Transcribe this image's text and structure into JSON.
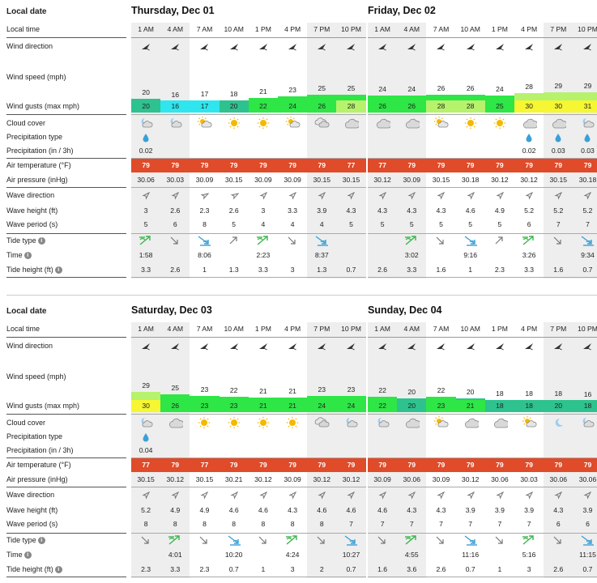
{
  "labels": {
    "local_date": "Local date",
    "local_time": "Local time",
    "wind_direction": "Wind direction",
    "wind_speed": "Wind speed (mph)",
    "wind_gusts": "Wind gusts (max mph)",
    "cloud_cover": "Cloud cover",
    "precip_type": "Precipitation type",
    "precipitation": "Precipitation (in / 3h)",
    "air_temp": "Air temperature (°F)",
    "air_pressure": "Air pressure (inHg)",
    "wave_direction": "Wave direction",
    "wave_height": "Wave height (ft)",
    "wave_period": "Wave period (s)",
    "tide_type": "Tide type",
    "time": "Time",
    "tide_height": "Tide height (ft)",
    "info_glyph": "i"
  },
  "colors": {
    "temp_bg": "#e04b2a",
    "shade": "#eeeeee",
    "wind_cyan": "#2fe6ee",
    "wind_teal": "#2ec28e",
    "wind_green": "#2ee646",
    "wind_lime": "#b6f26c",
    "wind_yellow": "#f6f632",
    "tide_rising": "#3ab54a",
    "tide_falling": "#3aa0d8"
  },
  "hours": [
    "1 AM",
    "4 AM",
    "7 AM",
    "10 AM",
    "1 PM",
    "4 PM",
    "7 PM",
    "10 PM"
  ],
  "sections": [
    {
      "days": [
        {
          "title": "Thursday, Dec 01",
          "wind_dir": [
            225,
            225,
            225,
            225,
            225,
            225,
            225,
            225
          ],
          "wind_speed": [
            "20",
            "16",
            "17",
            "18",
            "21",
            "23",
            "25",
            "25"
          ],
          "wind_speed_n": [
            20,
            16,
            17,
            18,
            21,
            23,
            25,
            25
          ],
          "gusts": [
            "20",
            "16",
            "17",
            "20",
            "22",
            "24",
            "26",
            "28"
          ],
          "gusts_n": [
            20,
            16,
            17,
            20,
            22,
            24,
            26,
            28
          ],
          "clouds": [
            "partly-cloudy-night-icon",
            "partly-cloudy-night-icon",
            "partly-sunny-icon",
            "sun-icon",
            "sun-icon",
            "partly-sunny-icon",
            "partly-cloudy-icon",
            "cloud-icon"
          ],
          "precip_type": [
            "rain-drop-icon",
            "",
            "",
            "",
            "",
            "",
            "",
            ""
          ],
          "precip": [
            "0.02",
            "",
            "",
            "",
            "",
            "",
            "",
            ""
          ],
          "temp": [
            "79",
            "79",
            "79",
            "79",
            "79",
            "79",
            "79",
            "77"
          ],
          "pressure": [
            "30.06",
            "30.03",
            "30.09",
            "30.15",
            "30.09",
            "30.09",
            "30.15",
            "30.15"
          ],
          "wave_dir": [
            45,
            45,
            60,
            60,
            45,
            45,
            45,
            45
          ],
          "wave_height": [
            "3",
            "2.6",
            "2.3",
            "2.6",
            "3",
            "3.3",
            "3.9",
            "4.3"
          ],
          "wave_period": [
            "5",
            "6",
            "8",
            "5",
            "4",
            "4",
            "4",
            "5"
          ],
          "tide_type": [
            "high",
            "falling",
            "low",
            "rising",
            "high",
            "falling",
            "low",
            ""
          ],
          "tide_time": [
            "1:58",
            "",
            "8:06",
            "",
            "2:23",
            "",
            "8:37",
            ""
          ],
          "tide_height": [
            "3.3",
            "2.6",
            "1",
            "1.3",
            "3.3",
            "3",
            "1.3",
            "0.7"
          ]
        },
        {
          "title": "Friday, Dec 02",
          "wind_dir": [
            225,
            225,
            225,
            225,
            225,
            225,
            225,
            225
          ],
          "wind_speed": [
            "24",
            "24",
            "26",
            "26",
            "24",
            "28",
            "29",
            "29"
          ],
          "wind_speed_n": [
            24,
            24,
            26,
            26,
            24,
            28,
            29,
            29
          ],
          "gusts": [
            "26",
            "26",
            "28",
            "28",
            "25",
            "30",
            "30",
            "31"
          ],
          "gusts_n": [
            26,
            26,
            28,
            28,
            25,
            30,
            30,
            31
          ],
          "clouds": [
            "cloud-icon",
            "cloud-icon",
            "partly-sunny-icon",
            "sun-icon",
            "sun-icon",
            "cloud-icon",
            "cloud-icon",
            "partly-cloudy-night-icon"
          ],
          "precip_type": [
            "",
            "",
            "",
            "",
            "",
            "rain-drop-icon",
            "rain-drop-icon",
            "rain-drop-icon"
          ],
          "precip": [
            "",
            "",
            "",
            "",
            "",
            "0.02",
            "0.03",
            "0.03"
          ],
          "temp": [
            "77",
            "79",
            "79",
            "79",
            "79",
            "79",
            "79",
            "79"
          ],
          "pressure": [
            "30.12",
            "30.09",
            "30.15",
            "30.18",
            "30.12",
            "30.12",
            "30.15",
            "30.18"
          ],
          "wave_dir": [
            45,
            45,
            45,
            45,
            45,
            45,
            45,
            45
          ],
          "wave_height": [
            "4.3",
            "4.3",
            "4.3",
            "4.6",
            "4.9",
            "5.2",
            "5.2",
            "5.2"
          ],
          "wave_period": [
            "5",
            "5",
            "5",
            "5",
            "5",
            "6",
            "7",
            "7"
          ],
          "tide_type": [
            "",
            "high",
            "falling",
            "low",
            "rising",
            "high",
            "falling",
            "low"
          ],
          "tide_time": [
            "",
            "3:02",
            "",
            "9:16",
            "",
            "3:26",
            "",
            "9:34"
          ],
          "tide_height": [
            "2.6",
            "3.3",
            "1.6",
            "1",
            "2.3",
            "3.3",
            "1.6",
            "0.7"
          ]
        }
      ]
    },
    {
      "days": [
        {
          "title": "Saturday, Dec 03",
          "wind_dir": [
            225,
            225,
            225,
            225,
            225,
            225,
            225,
            225
          ],
          "wind_speed": [
            "29",
            "25",
            "23",
            "22",
            "21",
            "21",
            "23",
            "23"
          ],
          "wind_speed_n": [
            29,
            25,
            23,
            22,
            21,
            21,
            23,
            23
          ],
          "gusts": [
            "30",
            "26",
            "23",
            "23",
            "21",
            "21",
            "24",
            "24"
          ],
          "gusts_n": [
            30,
            26,
            23,
            23,
            21,
            21,
            24,
            24
          ],
          "clouds": [
            "partly-cloudy-night-icon",
            "cloud-icon",
            "sun-icon",
            "sun-icon",
            "sun-icon",
            "sun-icon",
            "partly-cloudy-icon",
            "partly-cloudy-night-icon"
          ],
          "precip_type": [
            "rain-drop-icon",
            "",
            "",
            "",
            "",
            "",
            "",
            ""
          ],
          "precip": [
            "0.04",
            "",
            "",
            "",
            "",
            "",
            "",
            ""
          ],
          "temp": [
            "77",
            "79",
            "77",
            "79",
            "79",
            "79",
            "79",
            "79"
          ],
          "pressure": [
            "30.15",
            "30.12",
            "30.15",
            "30.21",
            "30.12",
            "30.09",
            "30.12",
            "30.12"
          ],
          "wave_dir": [
            45,
            45,
            45,
            45,
            45,
            45,
            45,
            45
          ],
          "wave_height": [
            "5.2",
            "4.9",
            "4.9",
            "4.6",
            "4.6",
            "4.3",
            "4.6",
            "4.6"
          ],
          "wave_period": [
            "8",
            "8",
            "8",
            "8",
            "8",
            "8",
            "8",
            "7"
          ],
          "tide_type": [
            "falling",
            "high",
            "falling",
            "low",
            "falling",
            "high",
            "falling",
            "low"
          ],
          "tide_time": [
            "",
            "4:01",
            "",
            "10:20",
            "",
            "4:24",
            "",
            "10:27"
          ],
          "tide_height": [
            "2.3",
            "3.3",
            "2.3",
            "0.7",
            "1",
            "3",
            "2",
            "0.7"
          ]
        },
        {
          "title": "Sunday, Dec 04",
          "wind_dir": [
            225,
            225,
            225,
            225,
            225,
            225,
            225,
            225
          ],
          "wind_speed": [
            "22",
            "20",
            "22",
            "20",
            "18",
            "18",
            "18",
            "16"
          ],
          "wind_speed_n": [
            22,
            20,
            22,
            20,
            18,
            18,
            18,
            16
          ],
          "gusts": [
            "22",
            "20",
            "23",
            "21",
            "18",
            "18",
            "20",
            "18"
          ],
          "gusts_n": [
            22,
            20,
            23,
            21,
            18,
            18,
            20,
            18
          ],
          "clouds": [
            "partly-cloudy-night-icon",
            "cloud-icon",
            "partly-sunny-icon",
            "cloud-icon",
            "cloud-icon",
            "partly-sunny-icon",
            "moon-icon",
            "partly-cloudy-night-icon"
          ],
          "precip_type": [
            "",
            "",
            "",
            "",
            "",
            "",
            "",
            ""
          ],
          "precip": [
            "",
            "",
            "",
            "",
            "",
            "",
            "",
            ""
          ],
          "temp": [
            "79",
            "79",
            "79",
            "79",
            "79",
            "79",
            "79",
            "79"
          ],
          "pressure": [
            "30.09",
            "30.06",
            "30.09",
            "30.12",
            "30.06",
            "30.03",
            "30.06",
            "30.06"
          ],
          "wave_dir": [
            45,
            45,
            45,
            45,
            45,
            45,
            45,
            45
          ],
          "wave_height": [
            "4.6",
            "4.3",
            "4.3",
            "3.9",
            "3.9",
            "3.9",
            "4.3",
            "3.9"
          ],
          "wave_period": [
            "7",
            "7",
            "7",
            "7",
            "7",
            "7",
            "6",
            "6"
          ],
          "tide_type": [
            "falling",
            "high",
            "falling",
            "low",
            "falling",
            "high",
            "falling",
            "low"
          ],
          "tide_time": [
            "",
            "4:55",
            "",
            "11:16",
            "",
            "5:16",
            "",
            "11:15"
          ],
          "tide_height": [
            "1.6",
            "3.6",
            "2.6",
            "0.7",
            "1",
            "3",
            "2.6",
            "0.7"
          ]
        }
      ]
    }
  ]
}
